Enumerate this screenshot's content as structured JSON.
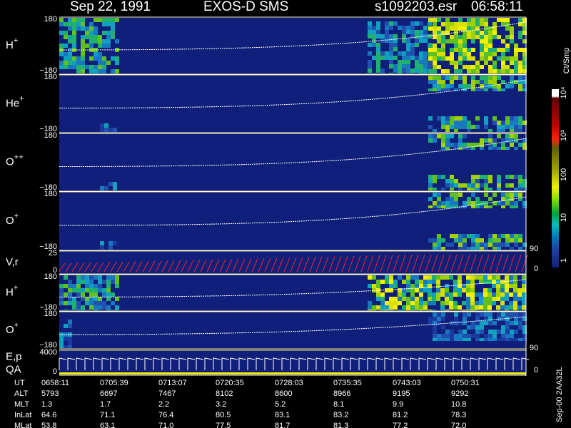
{
  "header": {
    "date": "Sep 22, 1991",
    "instrument": "EXOS-D SMS",
    "file": "s1092203.esr",
    "time": "06:58:11"
  },
  "panels": [
    {
      "ion": "H",
      "charge": "+",
      "ticks": [
        "180",
        "−180"
      ]
    },
    {
      "ion": "He",
      "charge": "+",
      "ticks": [
        "180",
        "−180"
      ]
    },
    {
      "ion": "O",
      "charge": "++",
      "ticks": [
        "180",
        "−180"
      ]
    },
    {
      "ion": "O",
      "charge": "+",
      "ticks": [
        "180",
        "−180"
      ]
    },
    {
      "ion": "V,r",
      "charge": "",
      "ticks": [
        "25",
        "0"
      ],
      "right_ticks": [
        "90",
        "0"
      ]
    },
    {
      "ion": "H",
      "charge": "+",
      "ticks": [
        "180",
        "−180"
      ]
    },
    {
      "ion": "O",
      "charge": "+",
      "ticks": [
        "180",
        "−180"
      ]
    },
    {
      "ion": "E,p",
      "charge": "",
      "label2": "QA",
      "ticks": [
        "4000",
        "0"
      ],
      "right_ticks": [
        "90",
        "0"
      ]
    }
  ],
  "colorbar": {
    "label": "Ct/Smp",
    "ticks": [
      "10⁴",
      "10³",
      "100",
      "10",
      "1"
    ]
  },
  "table": {
    "rows": [
      [
        "UT",
        "0658:11",
        "0705:39",
        "0713:07",
        "0720:35",
        "0728:03",
        "0735:35",
        "0743:03",
        "0750:31"
      ],
      [
        "ALT",
        "5793",
        "6697",
        "7467",
        "8102",
        "8600",
        "8966",
        "9195",
        "9292"
      ],
      [
        "MLT",
        "1.3",
        "1.7",
        "2.2",
        "3.2",
        "5.2",
        "8.1",
        "9.9",
        "10.8"
      ],
      [
        "InLat",
        "64.6",
        "71.1",
        "76.4",
        "80.5",
        "83.1",
        "83.2",
        "81.2",
        "78.3"
      ],
      [
        "MLat",
        "53.8",
        "63.1",
        "71.0",
        "77.5",
        "81.7",
        "81.3",
        "77.2",
        "72.0"
      ]
    ]
  },
  "footer": "Sep-00 2AA32L"
}
